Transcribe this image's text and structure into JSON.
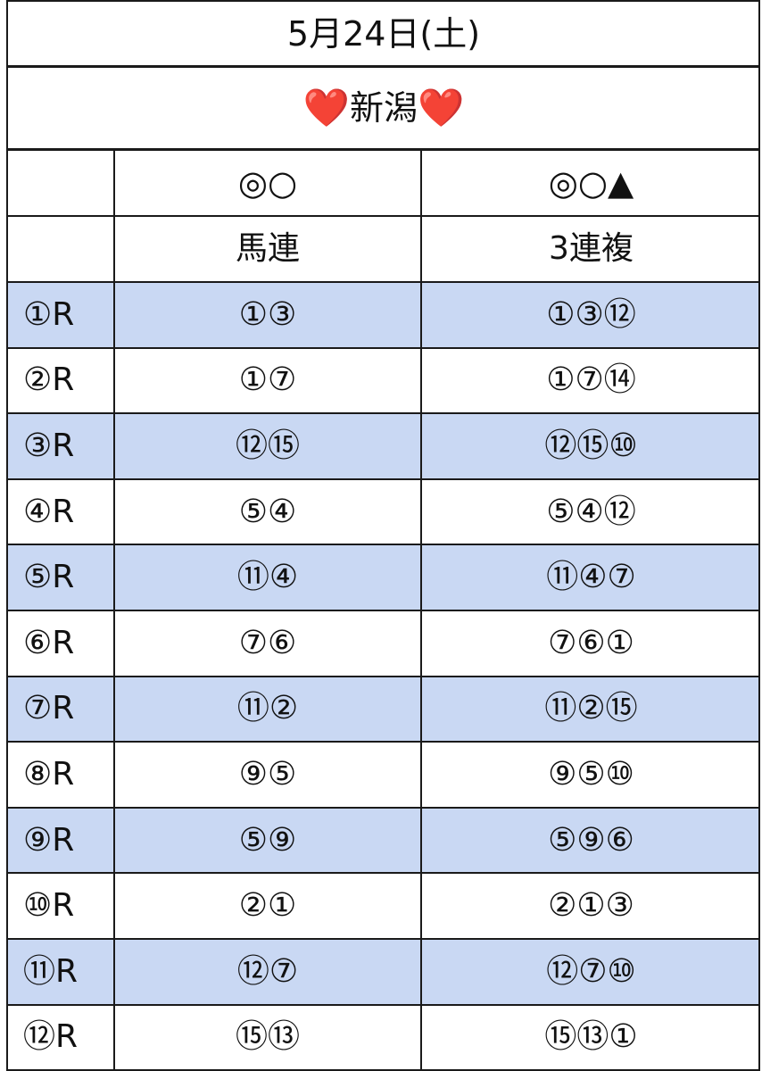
{
  "colors": {
    "stripe": "#c9d8f3",
    "white": "#ffffff",
    "line": "#1a1a1a",
    "heart": "#e0141e"
  },
  "title_date": "5月24日(土)",
  "venue": {
    "left_icon": "❤️",
    "name": "新潟",
    "right_icon": "❤️"
  },
  "header": {
    "col1_marks": "◎○",
    "col2_marks": "◎○▲",
    "col1_type": "馬連",
    "col2_type": "3連複"
  },
  "races": [
    {
      "race": "①R",
      "umaren": "①③",
      "sanrenpuku": "①③⑫",
      "shaded": true
    },
    {
      "race": "②R",
      "umaren": "①⑦",
      "sanrenpuku": "①⑦⑭",
      "shaded": false
    },
    {
      "race": "③R",
      "umaren": "⑫⑮",
      "sanrenpuku": "⑫⑮⑩",
      "shaded": true
    },
    {
      "race": "④R",
      "umaren": "⑤④",
      "sanrenpuku": "⑤④⑫",
      "shaded": false
    },
    {
      "race": "⑤R",
      "umaren": "⑪④",
      "sanrenpuku": "⑪④⑦",
      "shaded": true
    },
    {
      "race": "⑥R",
      "umaren": "⑦⑥",
      "sanrenpuku": "⑦⑥①",
      "shaded": false
    },
    {
      "race": "⑦R",
      "umaren": "⑪②",
      "sanrenpuku": "⑪②⑮",
      "shaded": true
    },
    {
      "race": "⑧R",
      "umaren": "⑨⑤",
      "sanrenpuku": "⑨⑤⑩",
      "shaded": false
    },
    {
      "race": "⑨R",
      "umaren": "⑤⑨",
      "sanrenpuku": "⑤⑨⑥",
      "shaded": true
    },
    {
      "race": "⑩R",
      "umaren": "②①",
      "sanrenpuku": "②①③",
      "shaded": false
    },
    {
      "race": "⑪R",
      "umaren": "⑫⑦",
      "sanrenpuku": "⑫⑦⑩",
      "shaded": true
    },
    {
      "race": "⑫R",
      "umaren": "⑮⑬",
      "sanrenpuku": "⑮⑬①",
      "shaded": false
    }
  ]
}
